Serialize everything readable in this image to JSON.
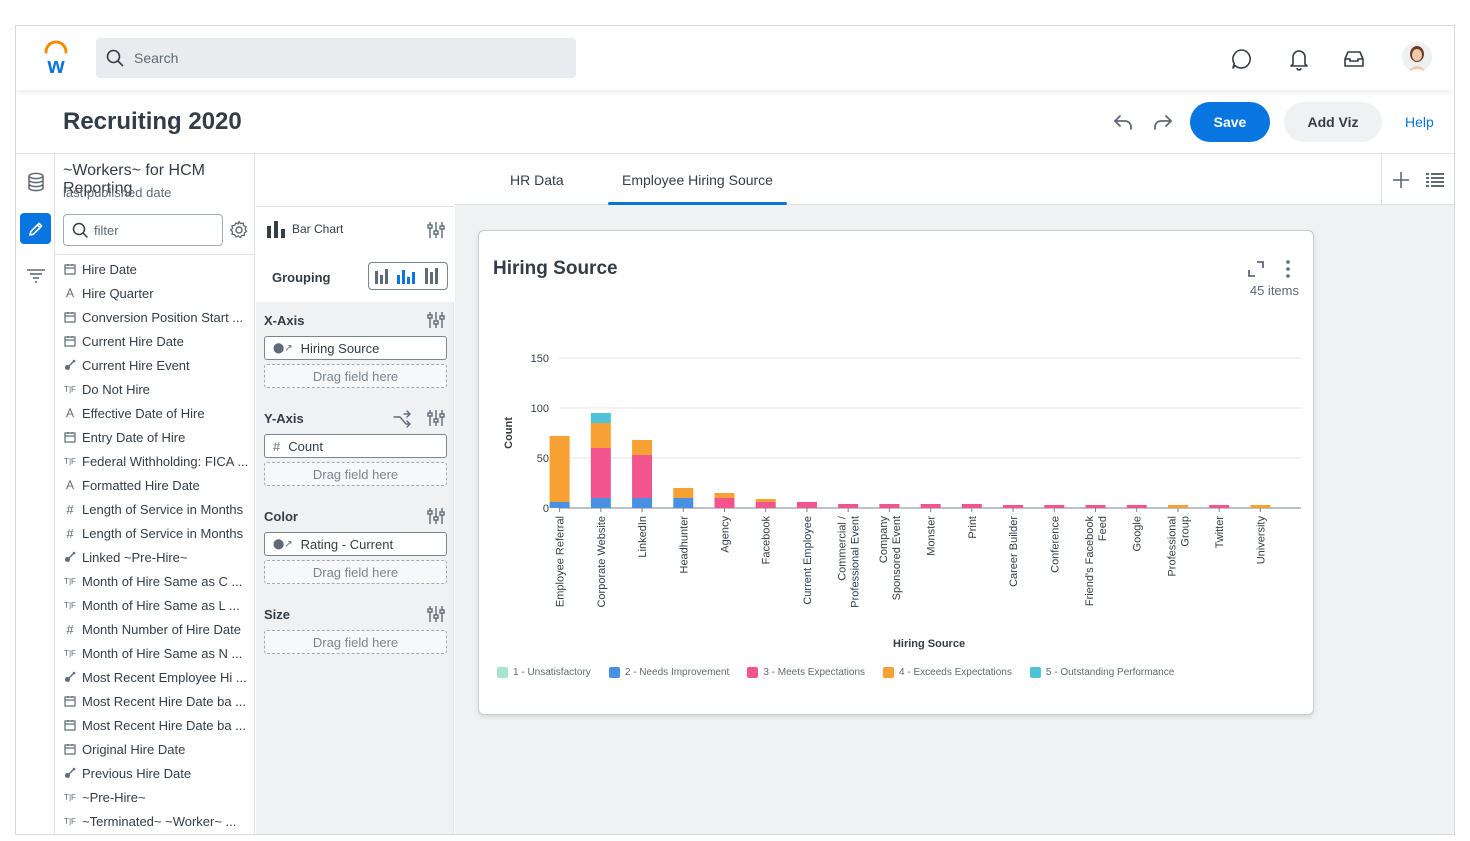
{
  "search": {
    "placeholder": "Search"
  },
  "page": {
    "title": "Recruiting 2020"
  },
  "header_actions": {
    "save": "Save",
    "add_viz": "Add Viz",
    "help": "Help"
  },
  "datasource": {
    "title": "~Workers~ for HCM Reporting",
    "subtitle": "last published date"
  },
  "filter": {
    "placeholder": "filter"
  },
  "fields": [
    {
      "icon": "date-icon",
      "label": "Hire Date"
    },
    {
      "icon": "text-icon",
      "label": "Hire Quarter"
    },
    {
      "icon": "date-icon",
      "label": "Conversion Position Start ..."
    },
    {
      "icon": "date-icon",
      "label": "Current Hire Date"
    },
    {
      "icon": "instance-icon",
      "label": "Current Hire Event"
    },
    {
      "icon": "boolean-icon",
      "label": "Do Not Hire"
    },
    {
      "icon": "text-icon",
      "label": "Effective Date of Hire"
    },
    {
      "icon": "date-icon",
      "label": "Entry Date of Hire"
    },
    {
      "icon": "boolean-icon",
      "label": "Federal Withholding: FICA ..."
    },
    {
      "icon": "text-icon",
      "label": "Formatted Hire Date"
    },
    {
      "icon": "number-icon",
      "label": "Length of Service in Months"
    },
    {
      "icon": "number-icon",
      "label": "Length of Service in Months"
    },
    {
      "icon": "instance-icon",
      "label": "Linked ~Pre-Hire~"
    },
    {
      "icon": "boolean-icon",
      "label": "Month of Hire Same as C ..."
    },
    {
      "icon": "boolean-icon",
      "label": "Month of Hire Same as L ..."
    },
    {
      "icon": "number-icon",
      "label": "Month Number of Hire Date"
    },
    {
      "icon": "boolean-icon",
      "label": "Month of Hire Same as N ..."
    },
    {
      "icon": "instance-icon",
      "label": "Most Recent Employee Hi ..."
    },
    {
      "icon": "date-icon",
      "label": "Most Recent Hire Date ba ..."
    },
    {
      "icon": "date-icon",
      "label": "Most Recent Hire Date ba ..."
    },
    {
      "icon": "date-icon",
      "label": "Original Hire Date"
    },
    {
      "icon": "instance-icon",
      "label": "Previous Hire Date"
    },
    {
      "icon": "boolean-icon",
      "label": "~Pre-Hire~"
    },
    {
      "icon": "boolean-icon",
      "label": "~Terminated~ ~Worker~ ..."
    }
  ],
  "config": {
    "chart_type": "Bar Chart",
    "grouping": "Grouping",
    "x_axis": {
      "label": "X-Axis",
      "field": "Hiring Source",
      "drop": "Drag field here"
    },
    "y_axis": {
      "label": "Y-Axis",
      "field": "Count",
      "drop": "Drag field here"
    },
    "color": {
      "label": "Color",
      "field": "Rating - Current",
      "drop": "Drag field here"
    },
    "size": {
      "label": "Size",
      "drop": "Drag field here"
    }
  },
  "tabs": [
    {
      "label": "HR Data"
    },
    {
      "label": "Employee Hiring Source"
    }
  ],
  "card": {
    "title": "Hiring Source",
    "count": "45 items"
  },
  "colors": {
    "accent": "#0875e1",
    "rating_1": "#a8e6cf",
    "rating_2": "#4a90e2",
    "rating_3": "#f2548e",
    "rating_4": "#f7a033",
    "rating_5": "#4cc3d9"
  },
  "chart_data": {
    "type": "bar",
    "stacked": true,
    "xlabel": "Hiring Source",
    "ylabel": "Count",
    "ylim": [
      0,
      150
    ],
    "yticks": [
      0,
      50,
      100,
      150
    ],
    "grid": true,
    "legend_position": "bottom",
    "categories": [
      "Employee Referral",
      "Corporate Website",
      "LinkedIn",
      "Headhunter",
      "Agency",
      "Facebook",
      "Current Employee",
      "Commercial / Professional Event",
      "Company Sponsored Event",
      "Monster",
      "Print",
      "Career Builder",
      "Conference",
      "Friend's Facebook Feed",
      "Google",
      "Professional Group",
      "Twitter",
      "University"
    ],
    "category_lines": [
      [
        "Employee Referral"
      ],
      [
        "Corporate Website"
      ],
      [
        "LinkedIn"
      ],
      [
        "Headhunter"
      ],
      [
        "Agency"
      ],
      [
        "Facebook"
      ],
      [
        "Current Employee"
      ],
      [
        "Commercial /",
        "Professional Event"
      ],
      [
        "Company",
        "Sponsored Event"
      ],
      [
        "Monster"
      ],
      [
        "Print"
      ],
      [
        "Career Builder"
      ],
      [
        "Conference"
      ],
      [
        "Friend's Facebook",
        "Feed"
      ],
      [
        "Google"
      ],
      [
        "Professional",
        "Group"
      ],
      [
        "Twitter"
      ],
      [
        "University"
      ]
    ],
    "series": [
      {
        "name": "1 - Unsatisfactory",
        "color": "#a8e6cf",
        "values": [
          0,
          0,
          0,
          0,
          0,
          0,
          0,
          0,
          0,
          0,
          0,
          0,
          0,
          0,
          0,
          0,
          0,
          0
        ]
      },
      {
        "name": "2 - Needs Improvement",
        "color": "#4a90e2",
        "values": [
          6,
          10,
          10,
          10,
          0,
          0,
          0,
          0,
          0,
          0,
          0,
          0,
          0,
          0,
          0,
          0,
          0,
          0
        ]
      },
      {
        "name": "3 - Meets Expectations",
        "color": "#f2548e",
        "values": [
          0,
          50,
          43,
          0,
          10,
          6,
          6,
          4,
          4,
          4,
          4,
          3,
          3,
          3,
          3,
          0,
          3,
          0
        ]
      },
      {
        "name": "4 - Exceeds Expectations",
        "color": "#f7a033",
        "values": [
          66,
          25,
          15,
          10,
          5,
          3,
          0,
          0,
          0,
          0,
          0,
          0,
          0,
          0,
          0,
          3,
          0,
          3
        ]
      },
      {
        "name": "5 - Outstanding Performance",
        "color": "#4cc3d9",
        "values": [
          0,
          10,
          0,
          0,
          0,
          0,
          0,
          0,
          0,
          0,
          0,
          0,
          0,
          0,
          0,
          0,
          0,
          0
        ]
      }
    ]
  }
}
